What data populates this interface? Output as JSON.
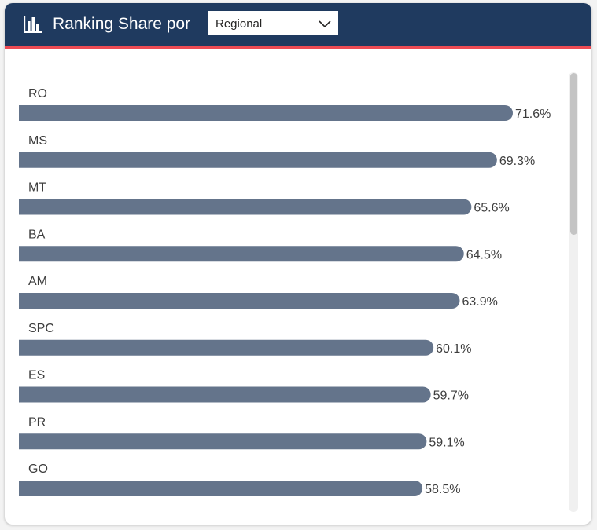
{
  "header": {
    "title": "Ranking Share por",
    "dropdown_value": "Regional",
    "background_color": "#1f3a5f",
    "accent_color": "#ee4b54",
    "icon": "bar-chart-icon",
    "chevron_icon": "chevron-down-icon"
  },
  "chart_data": {
    "type": "bar",
    "orientation": "horizontal",
    "categories": [
      "RO",
      "MS",
      "MT",
      "BA",
      "AM",
      "SPC",
      "ES",
      "PR",
      "GO"
    ],
    "values": [
      71.6,
      69.3,
      65.6,
      64.5,
      63.9,
      60.1,
      59.7,
      59.1,
      58.5
    ],
    "data_labels": [
      "71.6%",
      "69.3%",
      "65.6%",
      "64.5%",
      "63.9%",
      "60.1%",
      "59.7%",
      "59.1%",
      "58.5%"
    ],
    "unit": "%",
    "bar_color": "#64748b",
    "grid": false,
    "legend": "none",
    "title": "",
    "xlabel": "",
    "ylabel": "",
    "xlim": [
      0,
      71.6
    ]
  }
}
